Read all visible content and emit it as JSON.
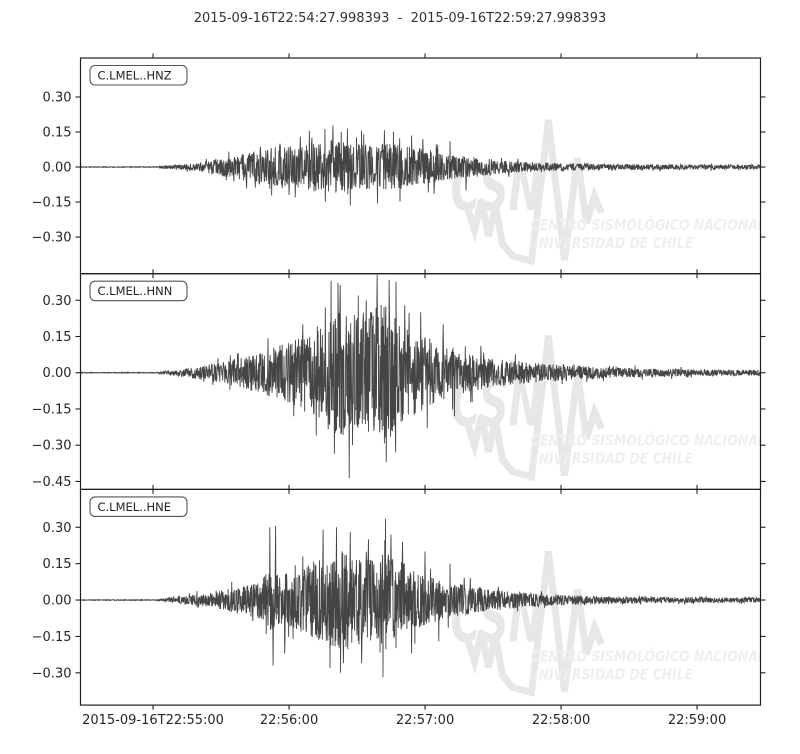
{
  "title": "2015-09-16T22:54:27.998393  -  2015-09-16T22:59:27.998393",
  "colors": {
    "trace": "#454545",
    "axis": "#1f1f1f",
    "tick_label": "#262626",
    "title_text": "#333333",
    "label_box_border": "#555555",
    "label_box_text": "#222222",
    "watermark_strong": "#e7e7e7",
    "watermark_light": "#efefef",
    "background": "#ffffff"
  },
  "watermark": {
    "acronym": "CSN",
    "line1": "CENTRO SISMOLÓGICO NACIONAL",
    "line2": "UNIVERSIDAD DE CHILE"
  },
  "chart_data": {
    "type": "line",
    "subtype": "seismogram",
    "title": "2015-09-16T22:54:27.998393  -  2015-09-16T22:59:27.998393",
    "start_time": "2015-09-16T22:54:27.998393",
    "end_time": "2015-09-16T22:59:27.998393",
    "time_window_seconds": 300,
    "grid": false,
    "x_ticks": [
      {
        "t": 32.002,
        "label": "2015-09-16T22:55:00"
      },
      {
        "t": 92.002,
        "label": "22:56:00"
      },
      {
        "t": 152.002,
        "label": "22:57:00"
      },
      {
        "t": 212.002,
        "label": "22:58:00"
      },
      {
        "t": 272.002,
        "label": "22:59:00"
      }
    ],
    "panels": [
      {
        "channel": "C.LMEL..HNZ",
        "seed": 1337,
        "ylim": [
          -0.457,
          0.467
        ],
        "yticks": [
          0.3,
          0.15,
          0.0,
          -0.15,
          -0.3
        ],
        "envelope": [
          [
            0,
            0.0015
          ],
          [
            33,
            0.0015
          ],
          [
            38,
            0.006
          ],
          [
            48,
            0.015
          ],
          [
            57,
            0.028
          ],
          [
            68,
            0.05
          ],
          [
            78,
            0.07
          ],
          [
            88,
            0.09
          ],
          [
            97,
            0.1
          ],
          [
            105,
            0.11
          ],
          [
            112,
            0.115
          ],
          [
            120,
            0.1
          ],
          [
            127,
            0.095
          ],
          [
            134,
            0.1
          ],
          [
            142,
            0.095
          ],
          [
            150,
            0.08
          ],
          [
            158,
            0.06
          ],
          [
            166,
            0.05
          ],
          [
            175,
            0.04
          ],
          [
            185,
            0.03
          ],
          [
            196,
            0.022
          ],
          [
            210,
            0.017
          ],
          [
            225,
            0.014
          ],
          [
            245,
            0.012
          ],
          [
            265,
            0.011
          ],
          [
            285,
            0.01
          ],
          [
            300,
            0.01
          ]
        ],
        "peaks": [
          [
            111.4,
            0.178
          ],
          [
            119,
            -0.165
          ],
          [
            115,
            0.15
          ],
          [
            108,
            -0.15
          ],
          [
            125,
            0.14
          ],
          [
            131,
            -0.155
          ],
          [
            134,
            0.158
          ],
          [
            138,
            0.15
          ],
          [
            141,
            -0.148
          ],
          [
            146,
            0.135
          ],
          [
            97,
            0.13
          ],
          [
            92,
            -0.12
          ],
          [
            102,
            0.125
          ],
          [
            151,
            0.12
          ],
          [
            156,
            -0.115
          ],
          [
            88,
            0.1
          ],
          [
            163,
            0.11
          ],
          [
            170,
            -0.1
          ]
        ]
      },
      {
        "channel": "C.LMEL..HNN",
        "seed": 4242,
        "ylim": [
          -0.483,
          0.41
        ],
        "yticks": [
          0.3,
          0.15,
          0.0,
          -0.15,
          -0.3,
          -0.45
        ],
        "envelope": [
          [
            0,
            0.0015
          ],
          [
            33,
            0.0015
          ],
          [
            38,
            0.008
          ],
          [
            48,
            0.02
          ],
          [
            57,
            0.035
          ],
          [
            70,
            0.06
          ],
          [
            80,
            0.09
          ],
          [
            90,
            0.12
          ],
          [
            100,
            0.17
          ],
          [
            108,
            0.22
          ],
          [
            113,
            0.28
          ],
          [
            118,
            0.26
          ],
          [
            124,
            0.22
          ],
          [
            131,
            0.28
          ],
          [
            136,
            0.3
          ],
          [
            141,
            0.22
          ],
          [
            148,
            0.17
          ],
          [
            155,
            0.13
          ],
          [
            163,
            0.1
          ],
          [
            172,
            0.08
          ],
          [
            181,
            0.06
          ],
          [
            195,
            0.045
          ],
          [
            210,
            0.035
          ],
          [
            225,
            0.025
          ],
          [
            240,
            0.02
          ],
          [
            260,
            0.016
          ],
          [
            280,
            0.013
          ],
          [
            300,
            0.012
          ]
        ],
        "peaks": [
          [
            113.6,
            0.372
          ],
          [
            118.5,
            -0.437
          ],
          [
            130.8,
            0.405
          ],
          [
            136.1,
            0.385
          ],
          [
            134.9,
            -0.37
          ],
          [
            120,
            -0.3
          ],
          [
            112,
            -0.335
          ],
          [
            126,
            0.3
          ],
          [
            122.5,
            0.32
          ],
          [
            139,
            -0.33
          ],
          [
            143,
            0.28
          ],
          [
            108,
            0.27
          ],
          [
            104,
            -0.26
          ],
          [
            150,
            0.25
          ],
          [
            153,
            -0.23
          ],
          [
            160,
            0.2
          ],
          [
            165,
            -0.18
          ],
          [
            98,
            0.2
          ],
          [
            94,
            -0.18
          ]
        ]
      },
      {
        "channel": "C.LMEL..HNE",
        "seed": 9001,
        "ylim": [
          -0.433,
          0.456
        ],
        "yticks": [
          0.3,
          0.15,
          0.0,
          -0.15,
          -0.3
        ],
        "envelope": [
          [
            0,
            0.0015
          ],
          [
            33,
            0.0015
          ],
          [
            38,
            0.008
          ],
          [
            45,
            0.015
          ],
          [
            57,
            0.03
          ],
          [
            70,
            0.055
          ],
          [
            80,
            0.085
          ],
          [
            84,
            0.13
          ],
          [
            88,
            0.11
          ],
          [
            95,
            0.12
          ],
          [
            103,
            0.16
          ],
          [
            110,
            0.19
          ],
          [
            116,
            0.21
          ],
          [
            122,
            0.19
          ],
          [
            128,
            0.17
          ],
          [
            134,
            0.21
          ],
          [
            140,
            0.17
          ],
          [
            146,
            0.13
          ],
          [
            153,
            0.1
          ],
          [
            160,
            0.08
          ],
          [
            168,
            0.065
          ],
          [
            178,
            0.05
          ],
          [
            190,
            0.035
          ],
          [
            205,
            0.025
          ],
          [
            220,
            0.018
          ],
          [
            240,
            0.014
          ],
          [
            265,
            0.012
          ],
          [
            300,
            0.01
          ]
        ],
        "peaks": [
          [
            83.5,
            0.3
          ],
          [
            86,
            0.305
          ],
          [
            85,
            -0.27
          ],
          [
            107,
            0.29
          ],
          [
            110,
            -0.28
          ],
          [
            113,
            0.3
          ],
          [
            116,
            -0.26
          ],
          [
            119,
            0.28
          ],
          [
            114.7,
            -0.3
          ],
          [
            134.5,
            0.335
          ],
          [
            133.5,
            -0.318
          ],
          [
            137,
            0.27
          ],
          [
            127,
            0.25
          ],
          [
            124,
            -0.26
          ],
          [
            142,
            0.24
          ],
          [
            146,
            -0.22
          ],
          [
            152,
            0.2
          ],
          [
            90,
            -0.22
          ],
          [
            98,
            0.18
          ],
          [
            158,
            -0.17
          ],
          [
            163,
            0.15
          ]
        ]
      }
    ]
  }
}
